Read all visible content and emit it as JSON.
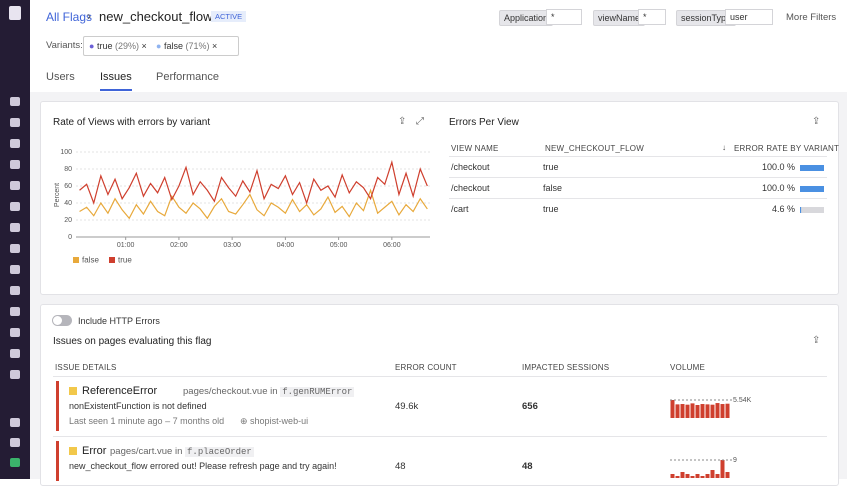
{
  "header": {
    "breadcrumb": "All Flags",
    "flag": "new_checkout_flow",
    "status": "ACTIVE"
  },
  "filters": [
    {
      "label": "Application",
      "value": "*"
    },
    {
      "label": "viewName",
      "value": "*"
    },
    {
      "label": "sessionType",
      "value": "user"
    }
  ],
  "more_filters": "More Filters",
  "variants": {
    "label": "Variants:",
    "chips": [
      {
        "name": "true",
        "share": "(29%)"
      },
      {
        "name": "false",
        "share": "(71%)"
      }
    ]
  },
  "tabs": [
    "Users",
    "Issues",
    "Performance"
  ],
  "chart_data": {
    "type": "line",
    "title": "Rate of Views with errors by variant",
    "y_label": "Percent",
    "x": [
      8,
      16,
      24,
      32,
      40,
      48,
      56,
      64,
      72,
      80,
      88,
      96,
      104,
      112,
      120,
      128,
      136,
      144,
      152,
      160,
      168,
      176,
      184,
      192,
      200,
      208,
      216,
      224,
      232,
      240,
      248,
      256,
      264,
      272,
      280,
      288,
      296,
      304,
      312,
      320,
      328,
      336,
      344,
      352,
      360,
      368,
      376,
      384,
      392,
      400
    ],
    "series": [
      {
        "name": "false",
        "color": "#e8a93b",
        "values": [
          30,
          35,
          25,
          40,
          28,
          45,
          32,
          22,
          38,
          27,
          42,
          30,
          25,
          48,
          35,
          28,
          40,
          33,
          22,
          36,
          45,
          30,
          27,
          38,
          50,
          32,
          25,
          40,
          35,
          28,
          44,
          30,
          38,
          26,
          33,
          47,
          29,
          36,
          24,
          40,
          31,
          55,
          28,
          35,
          42,
          26,
          38,
          30,
          45,
          33
        ]
      },
      {
        "name": "true",
        "color": "#cf3f2e",
        "values": [
          55,
          62,
          40,
          72,
          50,
          68,
          45,
          58,
          75,
          48,
          63,
          52,
          70,
          44,
          60,
          82,
          50,
          65,
          55,
          42,
          70,
          58,
          48,
          66,
          53,
          78,
          45,
          62,
          57,
          72,
          50,
          64,
          40,
          68,
          55,
          60,
          47,
          73,
          52,
          65,
          58,
          45,
          70,
          62,
          88,
          50,
          75,
          48,
          80,
          60
        ]
      }
    ],
    "xlim": [
      4,
      403
    ],
    "ylim": [
      0,
      100
    ],
    "yticks": [
      0,
      20,
      40,
      60,
      80,
      100
    ],
    "xticks": [
      {
        "value": 60,
        "label": "01:00"
      },
      {
        "value": 120,
        "label": "02:00"
      },
      {
        "value": 180,
        "label": "03:00"
      },
      {
        "value": 240,
        "label": "04:00"
      },
      {
        "value": 300,
        "label": "05:00"
      },
      {
        "value": 360,
        "label": "06:00"
      }
    ],
    "grid": true
  },
  "errors_per_view": {
    "title": "Errors Per View",
    "columns": [
      "VIEW NAME",
      "NEW_CHECKOUT_FLOW",
      "ERROR RATE BY VARIANT"
    ],
    "rows": [
      {
        "view": "/checkout",
        "variant": "true",
        "rate": 100,
        "rate_label": "100.0 %"
      },
      {
        "view": "/checkout",
        "variant": "false",
        "rate": 100,
        "rate_label": "100.0 %"
      },
      {
        "view": "/cart",
        "variant": "true",
        "rate": 4.6,
        "rate_label": "4.6 %"
      }
    ]
  },
  "issues": {
    "toggle": "Include HTTP Errors",
    "title": "Issues on pages evaluating this flag",
    "columns": [
      "ISSUE DETAILS",
      "ERROR COUNT",
      "IMPACTED SESSIONS",
      "VOLUME"
    ],
    "rows": [
      {
        "type": "ReferenceError",
        "page": "pages/checkout.vue",
        "in": "in",
        "function": "f.genRUMError",
        "message": "nonExistentFunction is not defined",
        "seen": "Last seen 1 minute ago – 7 months old",
        "service": "shopist-web-ui",
        "count": "49.6k",
        "sessions": "656",
        "volume": [
          5540,
          4200,
          4300,
          4100,
          4500,
          4000,
          4300,
          4200,
          4100,
          4600,
          4300,
          4400
        ],
        "volume_max": {
          "value": 5540,
          "label": "5.54K"
        }
      },
      {
        "type": "Error",
        "page": "pages/cart.vue",
        "in": "in",
        "function": "f.placeOrder",
        "message": "new_checkout_flow errored out! Please refresh page and try again!",
        "count": "48",
        "sessions": "48",
        "volume": [
          2,
          1,
          3,
          2,
          1,
          2,
          1,
          2,
          4,
          2,
          9,
          3
        ],
        "volume_max": {
          "value": 9,
          "label": "9"
        }
      }
    ]
  }
}
